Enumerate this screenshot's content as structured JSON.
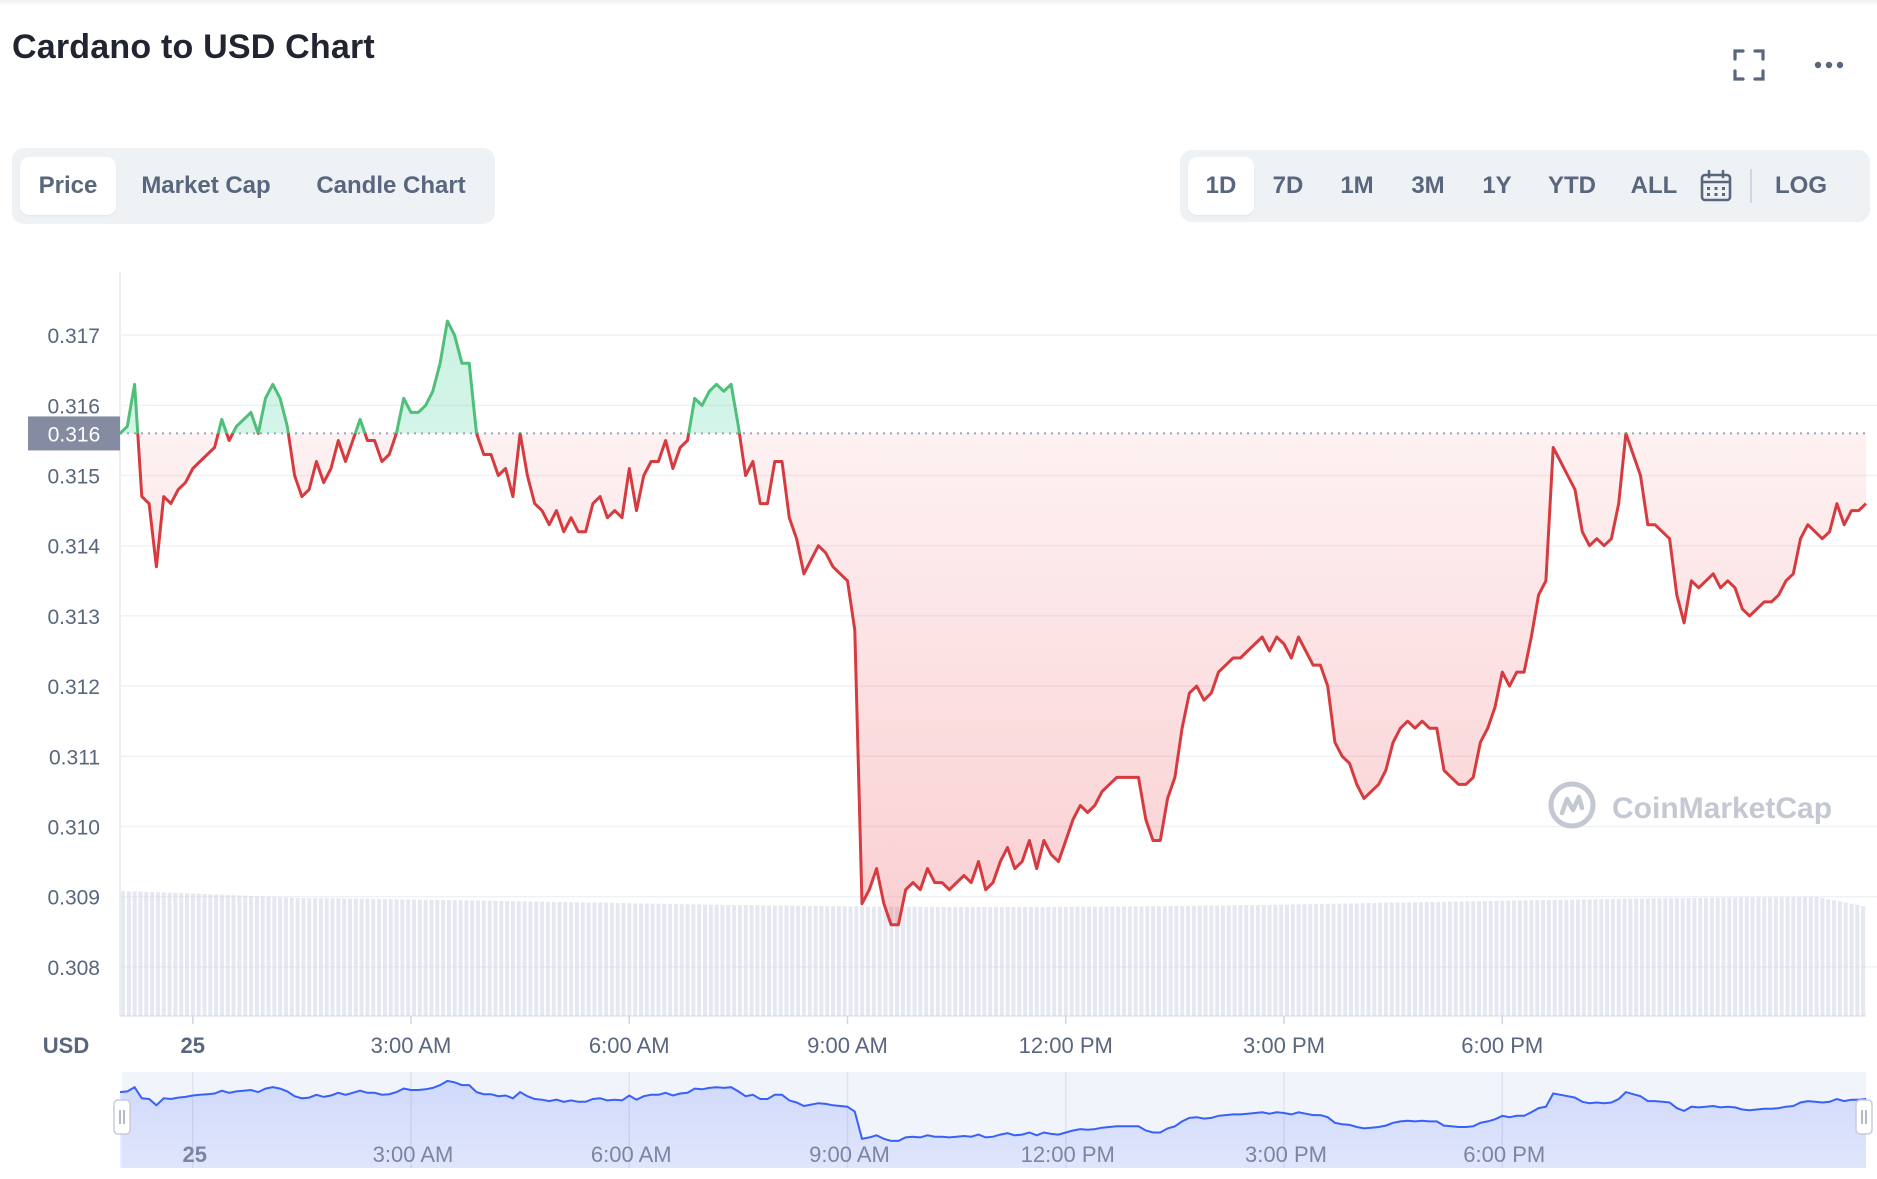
{
  "header": {
    "title": "Cardano to USD Chart"
  },
  "icons": {
    "fullscreen": "fullscreen-icon",
    "more": "more-horizontal-icon",
    "calendar": "calendar-icon"
  },
  "tabs": {
    "metric": [
      {
        "label": "Price",
        "active": true
      },
      {
        "label": "Market Cap",
        "active": false
      },
      {
        "label": "Candle Chart",
        "active": false
      }
    ],
    "range": [
      {
        "label": "1D",
        "active": true
      },
      {
        "label": "7D",
        "active": false
      },
      {
        "label": "1M",
        "active": false
      },
      {
        "label": "3M",
        "active": false
      },
      {
        "label": "1Y",
        "active": false
      },
      {
        "label": "YTD",
        "active": false
      },
      {
        "label": "ALL",
        "active": false
      }
    ],
    "log_label": "LOG"
  },
  "watermark": "CoinMarketCap",
  "colors": {
    "up": "#16c784",
    "down": "#ea3943",
    "line_up": "#4fbf7a",
    "line_down": "#d63b3f",
    "navigator": "#3861fb",
    "volume": "#cfd6e4",
    "badge": "#858ca2"
  },
  "chart_data": {
    "type": "line",
    "currency_label": "USD",
    "reference_price": 0.3156,
    "reference_label": "0.316",
    "ylim": [
      0.3073,
      0.3179
    ],
    "y_ticks": [
      0.308,
      0.309,
      0.31,
      0.311,
      0.312,
      0.313,
      0.314,
      0.315,
      0.316,
      0.317
    ],
    "y_tick_labels": [
      "0.308",
      "0.309",
      "0.310",
      "0.311",
      "0.312",
      "0.313",
      "0.314",
      "0.315",
      "0.316",
      "0.317"
    ],
    "x_unit": "hours since 00:00",
    "x_range": [
      -1.0,
      23.0
    ],
    "x_ticks": [
      0,
      3,
      6,
      9,
      12,
      15,
      18
    ],
    "x_tick_labels": [
      "25",
      "3:00 AM",
      "6:00 AM",
      "9:00 AM",
      "12:00 PM",
      "3:00 PM",
      "6:00 PM"
    ],
    "series": [
      {
        "x": [
          -1.0,
          -0.9,
          -0.8,
          -0.7,
          -0.6,
          -0.5,
          -0.4,
          -0.3,
          -0.2,
          -0.1,
          0.0,
          0.1,
          0.2,
          0.3,
          0.4,
          0.5,
          0.6,
          0.7,
          0.8,
          0.9,
          1.0,
          1.1,
          1.2,
          1.3,
          1.4,
          1.5,
          1.6,
          1.7,
          1.8,
          1.9,
          2.0,
          2.1,
          2.2,
          2.3,
          2.4,
          2.5,
          2.6,
          2.7,
          2.8,
          2.9,
          3.0,
          3.1,
          3.2,
          3.3,
          3.4,
          3.5,
          3.6,
          3.7,
          3.8,
          3.9,
          4.0,
          4.1,
          4.2,
          4.3,
          4.4,
          4.5,
          4.6,
          4.7,
          4.8,
          4.9,
          5.0,
          5.1,
          5.2,
          5.3,
          5.4,
          5.5,
          5.6,
          5.7,
          5.8,
          5.9,
          6.0,
          6.1,
          6.2,
          6.3,
          6.4,
          6.5,
          6.6,
          6.7,
          6.8,
          6.9,
          7.0,
          7.1,
          7.2,
          7.3,
          7.4,
          7.5,
          7.6,
          7.7,
          7.8,
          7.9,
          8.0,
          8.1,
          8.2,
          8.3,
          8.4,
          8.5,
          8.6,
          8.7,
          8.8,
          8.9,
          9.0,
          9.1,
          9.2,
          9.3,
          9.4,
          9.5,
          9.6,
          9.7,
          9.8,
          9.9,
          10.0,
          10.1,
          10.2,
          10.3,
          10.4,
          10.5,
          10.6,
          10.7,
          10.8,
          10.9,
          11.0,
          11.1,
          11.2,
          11.3,
          11.4,
          11.5,
          11.6,
          11.7,
          11.8,
          11.9,
          12.0,
          12.1,
          12.2,
          12.3,
          12.4,
          12.5,
          12.6,
          12.7,
          12.8,
          12.9,
          13.0,
          13.1,
          13.2,
          13.3,
          13.4,
          13.5,
          13.6,
          13.7,
          13.8,
          13.9,
          14.0,
          14.1,
          14.2,
          14.3,
          14.4,
          14.5,
          14.6,
          14.7,
          14.8,
          14.9,
          15.0,
          15.1,
          15.2,
          15.3,
          15.4,
          15.5,
          15.6,
          15.7,
          15.8,
          15.9,
          16.0,
          16.1,
          16.2,
          16.3,
          16.4,
          16.5,
          16.6,
          16.7,
          16.8,
          16.9,
          17.0,
          17.1,
          17.2,
          17.3,
          17.4,
          17.5,
          17.6,
          17.7,
          17.8,
          17.9,
          18.0,
          18.1,
          18.2,
          18.3,
          18.4,
          18.5,
          18.6,
          18.7,
          18.8,
          18.9,
          19.0,
          19.1,
          19.2,
          19.3,
          19.4,
          19.5,
          19.6,
          19.7,
          19.8,
          19.9,
          20.0,
          20.1,
          20.2,
          20.3,
          20.4,
          20.5,
          20.6,
          20.7,
          20.8,
          20.9,
          21.0,
          21.1,
          21.2,
          21.3,
          21.4,
          21.5,
          21.6,
          21.7,
          21.8,
          21.9,
          22.0,
          22.1,
          22.2,
          22.3,
          22.4,
          22.5,
          22.6,
          22.7,
          22.8,
          22.9,
          23.0
        ],
        "y": [
          0.3156,
          0.3157,
          0.3163,
          0.3147,
          0.3146,
          0.3137,
          0.3147,
          0.3146,
          0.3148,
          0.3149,
          0.3151,
          0.3152,
          0.3153,
          0.3154,
          0.3158,
          0.3155,
          0.3157,
          0.3158,
          0.3159,
          0.3156,
          0.3161,
          0.3163,
          0.3161,
          0.3157,
          0.315,
          0.3147,
          0.3148,
          0.3152,
          0.3149,
          0.3151,
          0.3155,
          0.3152,
          0.3155,
          0.3158,
          0.3155,
          0.3155,
          0.3152,
          0.3153,
          0.3156,
          0.3161,
          0.3159,
          0.3159,
          0.316,
          0.3162,
          0.3166,
          0.3172,
          0.317,
          0.3166,
          0.3166,
          0.3156,
          0.3153,
          0.3153,
          0.315,
          0.3151,
          0.3147,
          0.3156,
          0.315,
          0.3146,
          0.3145,
          0.3143,
          0.3145,
          0.3142,
          0.3144,
          0.3142,
          0.3142,
          0.3146,
          0.3147,
          0.3144,
          0.3145,
          0.3144,
          0.3151,
          0.3145,
          0.315,
          0.3152,
          0.3152,
          0.3155,
          0.3151,
          0.3154,
          0.3155,
          0.3161,
          0.316,
          0.3162,
          0.3163,
          0.3162,
          0.3163,
          0.3157,
          0.315,
          0.3152,
          0.3146,
          0.3146,
          0.3152,
          0.3152,
          0.3144,
          0.3141,
          0.3136,
          0.3138,
          0.314,
          0.3139,
          0.3137,
          0.3136,
          0.3135,
          0.3128,
          0.3089,
          0.3091,
          0.3094,
          0.3089,
          0.3086,
          0.3086,
          0.3091,
          0.3092,
          0.3091,
          0.3094,
          0.3092,
          0.3092,
          0.3091,
          0.3092,
          0.3093,
          0.3092,
          0.3095,
          0.3091,
          0.3092,
          0.3095,
          0.3097,
          0.3094,
          0.3095,
          0.3098,
          0.3094,
          0.3098,
          0.3096,
          0.3095,
          0.3098,
          0.3101,
          0.3103,
          0.3102,
          0.3103,
          0.3105,
          0.3106,
          0.3107,
          0.3107,
          0.3107,
          0.3107,
          0.3101,
          0.3098,
          0.3098,
          0.3104,
          0.3107,
          0.3114,
          0.3119,
          0.312,
          0.3118,
          0.3119,
          0.3122,
          0.3123,
          0.3124,
          0.3124,
          0.3125,
          0.3126,
          0.3127,
          0.3125,
          0.3127,
          0.3126,
          0.3124,
          0.3127,
          0.3125,
          0.3123,
          0.3123,
          0.312,
          0.3112,
          0.311,
          0.3109,
          0.3106,
          0.3104,
          0.3105,
          0.3106,
          0.3108,
          0.3112,
          0.3114,
          0.3115,
          0.3114,
          0.3115,
          0.3114,
          0.3114,
          0.3108,
          0.3107,
          0.3106,
          0.3106,
          0.3107,
          0.3112,
          0.3114,
          0.3117,
          0.3122,
          0.312,
          0.3122,
          0.3122,
          0.3127,
          0.3133,
          0.3135,
          0.3154,
          0.3152,
          0.315,
          0.3148,
          0.3142,
          0.314,
          0.3141,
          0.314,
          0.3141,
          0.3146,
          0.3156,
          0.3153,
          0.315,
          0.3143,
          0.3143,
          0.3142,
          0.3141,
          0.3133,
          0.3129,
          0.3135,
          0.3134,
          0.3135,
          0.3136,
          0.3134,
          0.3135,
          0.3134,
          0.3131,
          0.313,
          0.3131,
          0.3132,
          0.3132,
          0.3133,
          0.3135,
          0.3136,
          0.3141,
          0.3143,
          0.3142,
          0.3141,
          0.3142,
          0.3146,
          0.3143,
          0.3145,
          0.3145,
          0.3146
        ]
      }
    ],
    "watermark": "CoinMarketCap"
  }
}
